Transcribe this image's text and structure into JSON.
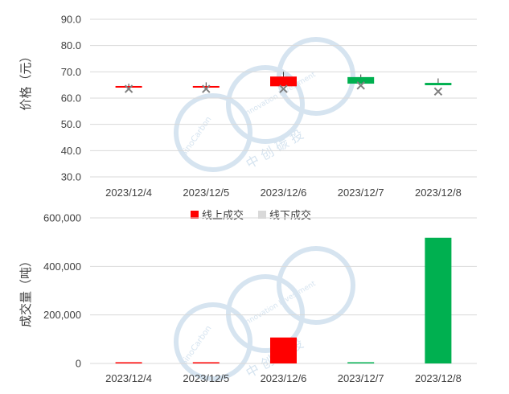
{
  "colors": {
    "up": "#ff0000",
    "down": "#00b050",
    "marker": "#7f7f7f",
    "grid": "#d9d9d9",
    "watermark": "#d6e4f0"
  },
  "watermark": {
    "brand": "SinoCarbon",
    "tagline": "Innovation Investment",
    "chinese": "中 创 碳 投"
  },
  "chart_data": [
    {
      "type": "candlestick",
      "ylabel": "价格（元）",
      "ylim": [
        30,
        90
      ],
      "yticks": [
        "30.0",
        "40.0",
        "50.0",
        "60.0",
        "70.0",
        "80.0",
        "90.0"
      ],
      "categories": [
        "2023/12/4",
        "2023/12/5",
        "2023/12/6",
        "2023/12/7",
        "2023/12/8"
      ],
      "candles": [
        {
          "open": 64.0,
          "close": 64.6,
          "high": 65.5,
          "low": 64.0,
          "color": "up"
        },
        {
          "open": 64.0,
          "close": 64.6,
          "high": 66.0,
          "low": 64.0,
          "color": "up"
        },
        {
          "open": 64.5,
          "close": 68.2,
          "high": 70.0,
          "low": 64.5,
          "color": "up"
        },
        {
          "open": 68.0,
          "close": 65.5,
          "high": 69.0,
          "low": 65.5,
          "color": "down"
        },
        {
          "open": 65.8,
          "close": 64.9,
          "high": 67.5,
          "low": 64.9,
          "color": "down"
        }
      ],
      "markers": {
        "name": "",
        "values": [
          63.5,
          63.5,
          63.5,
          64.8,
          62.5
        ]
      }
    },
    {
      "type": "bar",
      "ylabel": "成交量（吨）",
      "ylim": [
        0,
        600000
      ],
      "yticks": [
        "0",
        "200,000",
        "400,000",
        "600,000"
      ],
      "categories": [
        "2023/12/4",
        "2023/12/5",
        "2023/12/6",
        "2023/12/7",
        "2023/12/8"
      ],
      "series": [
        {
          "name": "线上成交",
          "values": [
            5000,
            5000,
            107000,
            4000,
            518000
          ],
          "colors": [
            "up",
            "up",
            "up",
            "down",
            "down"
          ]
        }
      ],
      "legend": {
        "position": "top-center",
        "items": [
          {
            "label": "线上成交",
            "color": "#ff0000"
          },
          {
            "label": "线下成交",
            "color": "#d9d9d9"
          }
        ]
      }
    }
  ]
}
